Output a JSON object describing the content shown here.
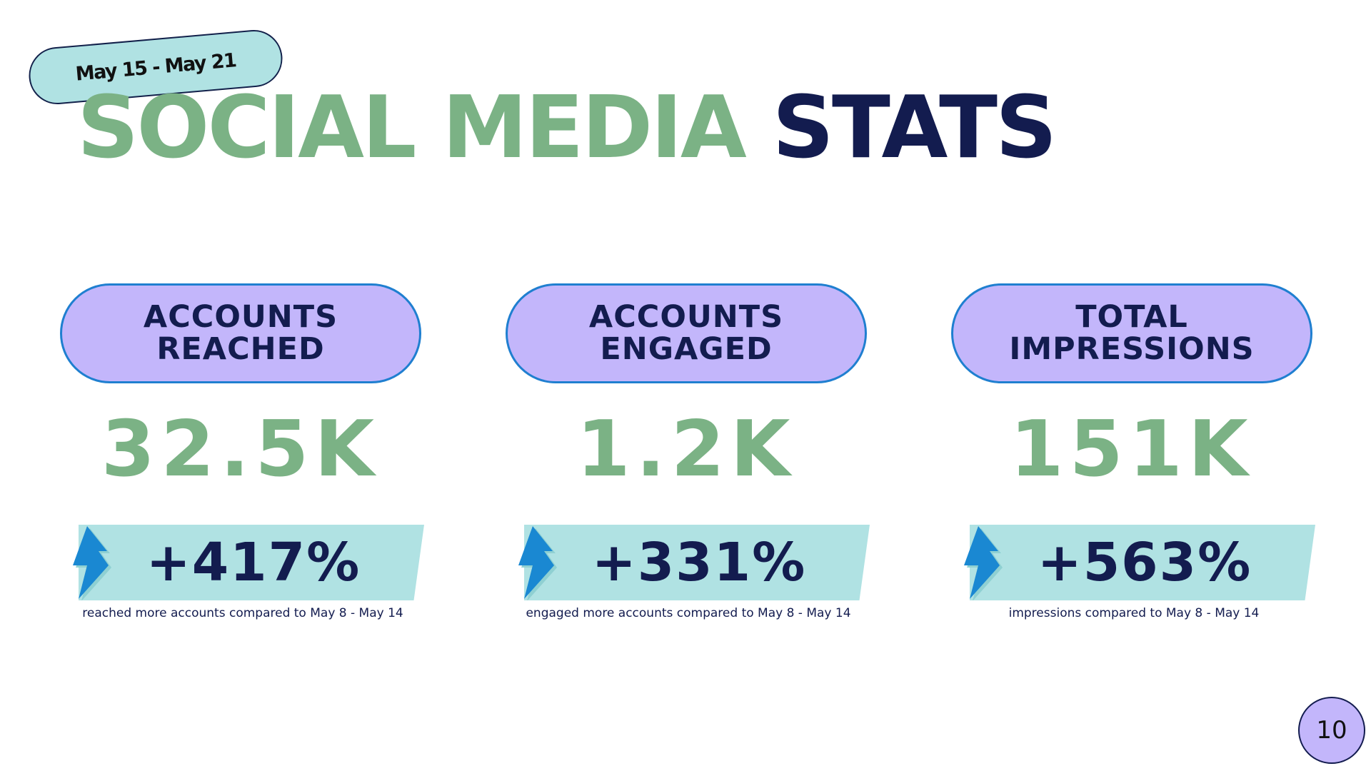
{
  "date_range": "May 15 - May 21",
  "title": {
    "part1": "SOCIAL MEDIA",
    "part2": "STATS"
  },
  "stats": [
    {
      "label_line1": "ACCOUNTS",
      "label_line2": "REACHED",
      "value": "32.5K",
      "change": "+417%",
      "caption": "reached more accounts compared to May 8 - May 14"
    },
    {
      "label_line1": "ACCOUNTS",
      "label_line2": "ENGAGED",
      "value": "1.2K",
      "change": "+331%",
      "caption": "engaged more accounts compared to May 8 - May 14"
    },
    {
      "label_line1": "TOTAL",
      "label_line2": "IMPRESSIONS",
      "value": "151K",
      "change": "+563%",
      "caption": "impressions compared to May 8 - May 14"
    }
  ],
  "page_number": "10",
  "icons": {
    "change_indicator": "lightning-bolt-icon"
  },
  "colors": {
    "green": "#7bb285",
    "navy": "#131c4f",
    "lavender": "#c3b6fb",
    "aqua": "#b0e2e3",
    "blue": "#1f7fd0"
  }
}
